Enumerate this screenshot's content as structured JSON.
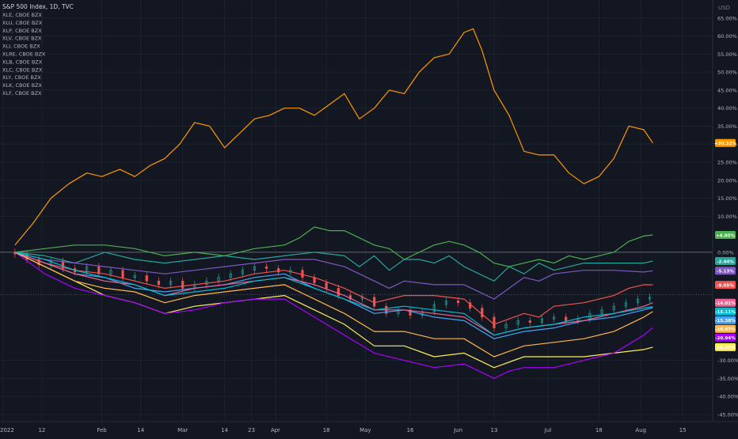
{
  "chart_data": {
    "type": "line",
    "title": "S&P 500 Index, 1D, TVC",
    "ylabel": "",
    "y_unit": "%",
    "currency": "USD",
    "ylim": [
      -47,
      70
    ],
    "y_ticks": [
      {
        "v": 65,
        "label": "65.00%"
      },
      {
        "v": 60,
        "label": "60.00%"
      },
      {
        "v": 55,
        "label": "55.00%"
      },
      {
        "v": 50,
        "label": "50.00%"
      },
      {
        "v": 45,
        "label": "45.00%"
      },
      {
        "v": 40,
        "label": "40.00%"
      },
      {
        "v": 35,
        "label": "35.00%"
      },
      {
        "v": 30,
        "label": "30.00%"
      },
      {
        "v": 25,
        "label": "25.00%"
      },
      {
        "v": 20,
        "label": "20.00%"
      },
      {
        "v": 15,
        "label": "15.00%"
      },
      {
        "v": 10,
        "label": "10.00%"
      },
      {
        "v": 0,
        "label": "0.00%"
      },
      {
        "v": -30,
        "label": "-30.00%"
      },
      {
        "v": -35,
        "label": "-35.00%"
      },
      {
        "v": -40,
        "label": "-40.00%"
      },
      {
        "v": -45,
        "label": "-45.00%"
      }
    ],
    "x_ticks": [
      {
        "day": -4,
        "label": "2022"
      },
      {
        "day": 9,
        "label": "12"
      },
      {
        "day": 29,
        "label": "Feb"
      },
      {
        "day": 42,
        "label": "14"
      },
      {
        "day": 56,
        "label": "Mar"
      },
      {
        "day": 70,
        "label": "14"
      },
      {
        "day": 79,
        "label": "23"
      },
      {
        "day": 87,
        "label": "Apr"
      },
      {
        "day": 104,
        "label": "18"
      },
      {
        "day": 117,
        "label": "May"
      },
      {
        "day": 132,
        "label": "16"
      },
      {
        "day": 148,
        "label": "Jun"
      },
      {
        "day": 160,
        "label": "13"
      },
      {
        "day": 178,
        "label": "Jul"
      },
      {
        "day": 195,
        "label": "18"
      },
      {
        "day": 209,
        "label": "Aug"
      },
      {
        "day": 223,
        "label": "15"
      }
    ],
    "x_range": [
      -5,
      233
    ],
    "legend_placement": "top-left",
    "gridlines": true,
    "zero_line": 0,
    "spx_price_line": -11.8,
    "series": [
      {
        "name": "XLE, CBOE BZX",
        "color": "#ff9800",
        "last_label": "+30.32%",
        "x": [
          0,
          6,
          12,
          18,
          24,
          29,
          35,
          40,
          45,
          50,
          55,
          60,
          65,
          70,
          75,
          80,
          85,
          90,
          95,
          100,
          105,
          110,
          115,
          120,
          125,
          130,
          135,
          140,
          145,
          150,
          153,
          156,
          160,
          165,
          170,
          175,
          180,
          185,
          190,
          195,
          200,
          205,
          210,
          213
        ],
        "y": [
          2,
          8,
          15,
          19,
          22,
          21,
          23,
          21,
          24,
          26,
          30,
          36,
          35,
          29,
          33,
          37,
          38,
          40,
          40,
          38,
          41,
          44,
          37,
          40,
          45,
          44,
          50,
          54,
          55,
          61,
          62,
          56,
          45,
          38,
          28,
          27,
          27,
          22,
          19,
          21,
          26,
          35,
          34,
          30.32
        ]
      },
      {
        "name": "XLU, CBOE BZX",
        "color": "#4caf50",
        "last_label": "+4.80%",
        "x": [
          0,
          10,
          20,
          30,
          40,
          50,
          60,
          70,
          80,
          90,
          95,
          100,
          105,
          110,
          115,
          120,
          125,
          130,
          135,
          140,
          145,
          150,
          155,
          160,
          165,
          170,
          175,
          180,
          185,
          190,
          195,
          200,
          205,
          210,
          213
        ],
        "y": [
          0,
          1,
          2,
          2,
          1,
          -1,
          0,
          -1,
          1,
          2,
          4,
          7,
          6,
          6,
          4,
          2,
          1,
          -2,
          0,
          2,
          3,
          2,
          0,
          -3,
          -4,
          -3,
          -2,
          -3,
          -1,
          -2,
          -1,
          0,
          3,
          4.5,
          4.8
        ]
      },
      {
        "name": "XLP, CBOE BZX",
        "color": "#26a69a",
        "last_label": "-2.44%",
        "x": [
          0,
          10,
          20,
          30,
          40,
          50,
          60,
          70,
          80,
          90,
          100,
          110,
          115,
          120,
          125,
          130,
          135,
          140,
          145,
          150,
          155,
          160,
          165,
          170,
          175,
          180,
          190,
          200,
          210,
          213
        ],
        "y": [
          0,
          -1,
          -3,
          0,
          -2,
          -3,
          -2,
          -1,
          -2,
          -1,
          0,
          -1,
          -4,
          -1,
          -5,
          -2,
          -2,
          -3,
          -1,
          -4,
          -6,
          -8,
          -4,
          -6,
          -3,
          -5,
          -3,
          -3,
          -3,
          -2.44
        ]
      },
      {
        "name": "XLV, CBOE BZX",
        "color": "#7e57c2",
        "last_label": "-5.13%",
        "x": [
          0,
          10,
          20,
          30,
          40,
          50,
          60,
          70,
          80,
          90,
          100,
          110,
          120,
          125,
          130,
          140,
          150,
          160,
          165,
          170,
          175,
          180,
          190,
          200,
          210,
          213
        ],
        "y": [
          0,
          -2,
          -3,
          -4,
          -5,
          -6,
          -5,
          -4,
          -3,
          -2,
          -2,
          -4,
          -8,
          -10,
          -8,
          -9,
          -9,
          -13,
          -10,
          -7,
          -8,
          -6,
          -5,
          -5,
          -5.5,
          -5.13
        ]
      },
      {
        "name": "XLI, CBOE BZX",
        "color": "#ef5350",
        "last_label": "-9.05%",
        "x": [
          0,
          10,
          20,
          30,
          40,
          50,
          60,
          70,
          80,
          90,
          100,
          110,
          120,
          130,
          140,
          150,
          160,
          170,
          175,
          180,
          190,
          200,
          205,
          210,
          213
        ],
        "y": [
          0,
          -3,
          -5,
          -6,
          -8,
          -10,
          -9,
          -8,
          -6,
          -5,
          -7,
          -10,
          -14,
          -12,
          -12,
          -13,
          -20,
          -17,
          -18,
          -15,
          -14,
          -12,
          -10,
          -9,
          -9.05
        ]
      },
      {
        "name": "XLRE, CBOE BZX",
        "color": "#42a5f5",
        "last_label": "-15.38%",
        "x": [
          0,
          10,
          20,
          30,
          40,
          50,
          60,
          70,
          80,
          90,
          100,
          110,
          120,
          130,
          140,
          150,
          160,
          170,
          180,
          190,
          200,
          210,
          213
        ],
        "y": [
          0,
          -3,
          -6,
          -7,
          -10,
          -11,
          -10,
          -9,
          -7,
          -6,
          -10,
          -13,
          -17,
          -16,
          -18,
          -19,
          -24,
          -22,
          -21,
          -19,
          -18,
          -16,
          -15.38
        ]
      },
      {
        "name": "XLB, CBOE BZX",
        "color": "#f06292",
        "last_label": "-14.01%",
        "x": [
          0,
          10,
          20,
          30,
          40,
          50,
          60,
          70,
          80,
          90,
          100,
          110,
          120,
          130,
          140,
          150,
          160,
          170,
          180,
          190,
          200,
          210,
          213
        ],
        "y": [
          0,
          -3,
          -6,
          -8,
          -9,
          -12,
          -10,
          -9,
          -8,
          -7,
          -9,
          -12,
          -16,
          -16,
          -17,
          -18,
          -23,
          -21,
          -20,
          -19,
          -17,
          -15,
          -14.01
        ]
      },
      {
        "name": "XLC, CBOE BZX",
        "color": "#ffee58",
        "last_label": "-26.35%",
        "x": [
          0,
          10,
          20,
          30,
          40,
          50,
          60,
          70,
          80,
          90,
          100,
          110,
          120,
          130,
          140,
          150,
          160,
          170,
          180,
          190,
          200,
          210,
          213
        ],
        "y": [
          0,
          -4,
          -8,
          -12,
          -14,
          -17,
          -15,
          -14,
          -13,
          -12,
          -16,
          -20,
          -26,
          -26,
          -29,
          -28,
          -32,
          -29,
          -29,
          -29,
          -28,
          -27,
          -26.35
        ]
      },
      {
        "name": "XLY, CBOE BZX",
        "color": "#aa00ff",
        "last_label": "-20.94%",
        "x": [
          0,
          10,
          20,
          30,
          40,
          50,
          60,
          70,
          80,
          90,
          100,
          110,
          120,
          130,
          140,
          150,
          160,
          165,
          170,
          180,
          190,
          200,
          210,
          213
        ],
        "y": [
          0,
          -6,
          -10,
          -12,
          -14,
          -17,
          -16,
          -14,
          -13,
          -13,
          -18,
          -23,
          -28,
          -30,
          -32,
          -31,
          -35,
          -33,
          -32,
          -32,
          -30,
          -28,
          -23,
          -20.94
        ]
      },
      {
        "name": "XLK, CBOE BZX",
        "color": "#ffb74d",
        "last_label": "-16.47%",
        "x": [
          0,
          10,
          20,
          30,
          40,
          50,
          60,
          70,
          80,
          90,
          100,
          110,
          120,
          130,
          140,
          150,
          160,
          170,
          180,
          190,
          200,
          210,
          213
        ],
        "y": [
          0,
          -4,
          -8,
          -10,
          -11,
          -14,
          -12,
          -11,
          -10,
          -9,
          -13,
          -17,
          -22,
          -22,
          -24,
          -24,
          -29,
          -26,
          -25,
          -24,
          -22,
          -18,
          -16.47
        ]
      },
      {
        "name": "XLF, CBOE BZX",
        "color": "#00bcd4",
        "last_label": "-15.11%",
        "x": [
          0,
          10,
          20,
          30,
          40,
          50,
          60,
          70,
          80,
          90,
          100,
          110,
          120,
          130,
          140,
          150,
          160,
          170,
          180,
          190,
          200,
          210,
          213
        ],
        "y": [
          0,
          -2,
          -5,
          -7,
          -9,
          -12,
          -11,
          -10,
          -8,
          -7,
          -10,
          -13,
          -16,
          -15,
          -16,
          -17,
          -23,
          -21,
          -20,
          -18,
          -17,
          -15.5,
          -15.11
        ]
      }
    ],
    "spx_candles": [
      {
        "x": 0,
        "o": 0,
        "c": -0.5
      },
      {
        "x": 4,
        "o": -0.5,
        "c": -2
      },
      {
        "x": 8,
        "o": -2,
        "c": -3.5
      },
      {
        "x": 12,
        "o": -3.5,
        "c": -2.5
      },
      {
        "x": 16,
        "o": -2.5,
        "c": -4.5
      },
      {
        "x": 20,
        "o": -4.5,
        "c": -5.5
      },
      {
        "x": 24,
        "o": -5.5,
        "c": -4
      },
      {
        "x": 28,
        "o": -4,
        "c": -6
      },
      {
        "x": 32,
        "o": -6,
        "c": -5
      },
      {
        "x": 36,
        "o": -5,
        "c": -7
      },
      {
        "x": 40,
        "o": -7,
        "c": -6.5
      },
      {
        "x": 44,
        "o": -6.5,
        "c": -8
      },
      {
        "x": 48,
        "o": -8,
        "c": -9
      },
      {
        "x": 52,
        "o": -9,
        "c": -8
      },
      {
        "x": 56,
        "o": -8,
        "c": -10
      },
      {
        "x": 60,
        "o": -10,
        "c": -9
      },
      {
        "x": 64,
        "o": -9,
        "c": -8
      },
      {
        "x": 68,
        "o": -8,
        "c": -7
      },
      {
        "x": 72,
        "o": -7,
        "c": -6
      },
      {
        "x": 76,
        "o": -6,
        "c": -5
      },
      {
        "x": 80,
        "o": -5,
        "c": -4
      },
      {
        "x": 84,
        "o": -4,
        "c": -4.5
      },
      {
        "x": 88,
        "o": -4.5,
        "c": -5.5
      },
      {
        "x": 92,
        "o": -5.5,
        "c": -5
      },
      {
        "x": 96,
        "o": -5,
        "c": -7
      },
      {
        "x": 100,
        "o": -7,
        "c": -8.5
      },
      {
        "x": 104,
        "o": -8.5,
        "c": -10
      },
      {
        "x": 108,
        "o": -10,
        "c": -12
      },
      {
        "x": 112,
        "o": -12,
        "c": -13
      },
      {
        "x": 116,
        "o": -13,
        "c": -12.5
      },
      {
        "x": 120,
        "o": -12.5,
        "c": -15
      },
      {
        "x": 124,
        "o": -15,
        "c": -17
      },
      {
        "x": 128,
        "o": -17,
        "c": -16
      },
      {
        "x": 132,
        "o": -16,
        "c": -17.5
      },
      {
        "x": 136,
        "o": -17.5,
        "c": -16.5
      },
      {
        "x": 140,
        "o": -16.5,
        "c": -14.5
      },
      {
        "x": 144,
        "o": -14.5,
        "c": -13.5
      },
      {
        "x": 148,
        "o": -13.5,
        "c": -14
      },
      {
        "x": 152,
        "o": -14,
        "c": -15.5
      },
      {
        "x": 156,
        "o": -15.5,
        "c": -18
      },
      {
        "x": 160,
        "o": -18,
        "c": -21
      },
      {
        "x": 164,
        "o": -21,
        "c": -20
      },
      {
        "x": 168,
        "o": -20,
        "c": -19
      },
      {
        "x": 172,
        "o": -19,
        "c": -19.5
      },
      {
        "x": 176,
        "o": -19.5,
        "c": -18.5
      },
      {
        "x": 180,
        "o": -18.5,
        "c": -18
      },
      {
        "x": 184,
        "o": -18,
        "c": -19
      },
      {
        "x": 188,
        "o": -19,
        "c": -18.5
      },
      {
        "x": 192,
        "o": -18.5,
        "c": -17
      },
      {
        "x": 196,
        "o": -17,
        "c": -16
      },
      {
        "x": 200,
        "o": -16,
        "c": -15
      },
      {
        "x": 204,
        "o": -15,
        "c": -14
      },
      {
        "x": 208,
        "o": -14,
        "c": -13
      },
      {
        "x": 212,
        "o": -13,
        "c": -12.5
      }
    ]
  }
}
